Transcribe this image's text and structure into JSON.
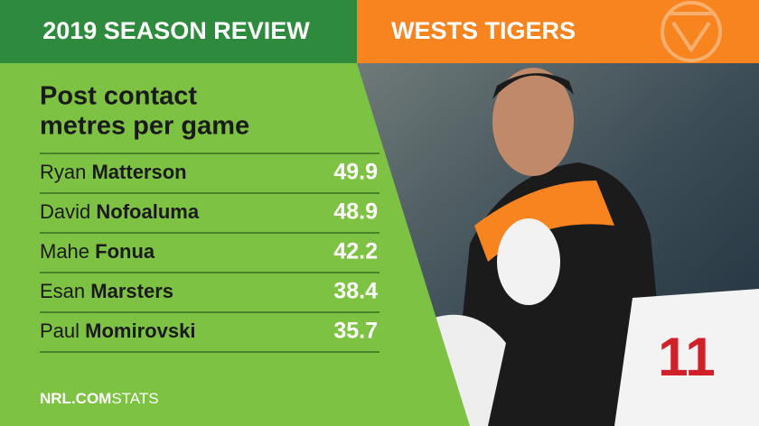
{
  "header": {
    "left": "2019 SEASON REVIEW",
    "right": "WESTS TIGERS"
  },
  "stat": {
    "title_lines": [
      "Post contact",
      "metres per game"
    ],
    "rows": [
      {
        "first": "Ryan",
        "last": "Matterson",
        "value": "49.9"
      },
      {
        "first": "David",
        "last": "Nofoaluma",
        "value": "48.9"
      },
      {
        "first": "Mahe",
        "last": "Fonua",
        "value": "42.2"
      },
      {
        "first": "Esan",
        "last": "Marsters",
        "value": "38.4"
      },
      {
        "first": "Paul",
        "last": "Momirovski",
        "value": "35.7"
      }
    ]
  },
  "footer": {
    "brand": "NRL.COM",
    "suffix": "STATS"
  }
}
